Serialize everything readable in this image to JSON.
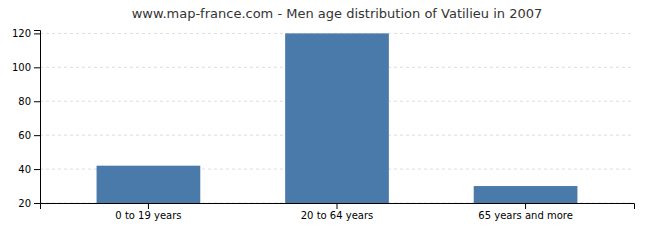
{
  "chart_data": {
    "type": "bar",
    "title": "www.map-france.com - Men age distribution of Vatilieu in 2007",
    "categories": [
      "0 to 19 years",
      "20 to 64 years",
      "65 years and more"
    ],
    "values": [
      42,
      120,
      30
    ],
    "color": "#4a7aaa",
    "ylim": [
      20,
      122
    ],
    "yticks": [
      20,
      40,
      60,
      80,
      100,
      120
    ],
    "grid": true
  }
}
